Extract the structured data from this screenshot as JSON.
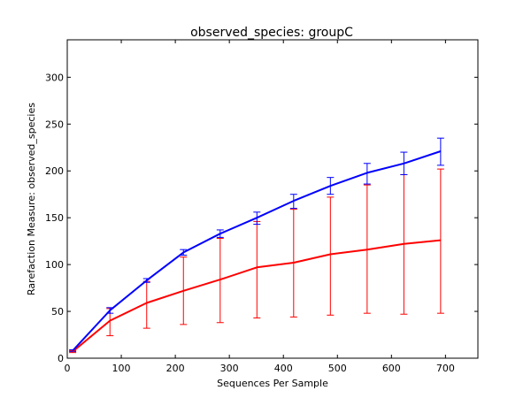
{
  "chart_data": {
    "type": "line",
    "title": "observed_species: groupC",
    "xlabel": "Sequences Per Sample",
    "ylabel": "Rarefaction Measure: observed_species",
    "xlim": [
      0,
      760
    ],
    "ylim": [
      0,
      340
    ],
    "xticks": [
      0,
      100,
      200,
      300,
      400,
      500,
      600,
      700
    ],
    "yticks": [
      0,
      50,
      100,
      150,
      200,
      250,
      300
    ],
    "grid": false,
    "legend": "none",
    "series": [
      {
        "color": "#0000ff",
        "x": [
          10,
          79,
          147,
          215,
          283,
          351,
          419,
          487,
          555,
          623,
          691
        ],
        "y": [
          8,
          51,
          83,
          113,
          133,
          150,
          168,
          184,
          198,
          208,
          221
        ],
        "err_low": [
          7,
          48,
          81,
          110,
          129,
          143,
          160,
          175,
          186,
          196,
          206
        ],
        "err_high": [
          9,
          54,
          85,
          116,
          137,
          156,
          175,
          193,
          208,
          220,
          235
        ]
      },
      {
        "color": "#ff0000",
        "x": [
          10,
          79,
          147,
          215,
          283,
          351,
          419,
          487,
          555,
          623,
          691
        ],
        "y": [
          7,
          40,
          59,
          72,
          84,
          97,
          102,
          111,
          116,
          122,
          126
        ],
        "err_low": [
          6,
          24,
          32,
          36,
          38,
          43,
          44,
          46,
          48,
          47,
          48
        ],
        "err_high": [
          8,
          53,
          82,
          108,
          128,
          146,
          159,
          172,
          185,
          196,
          202
        ]
      }
    ]
  }
}
